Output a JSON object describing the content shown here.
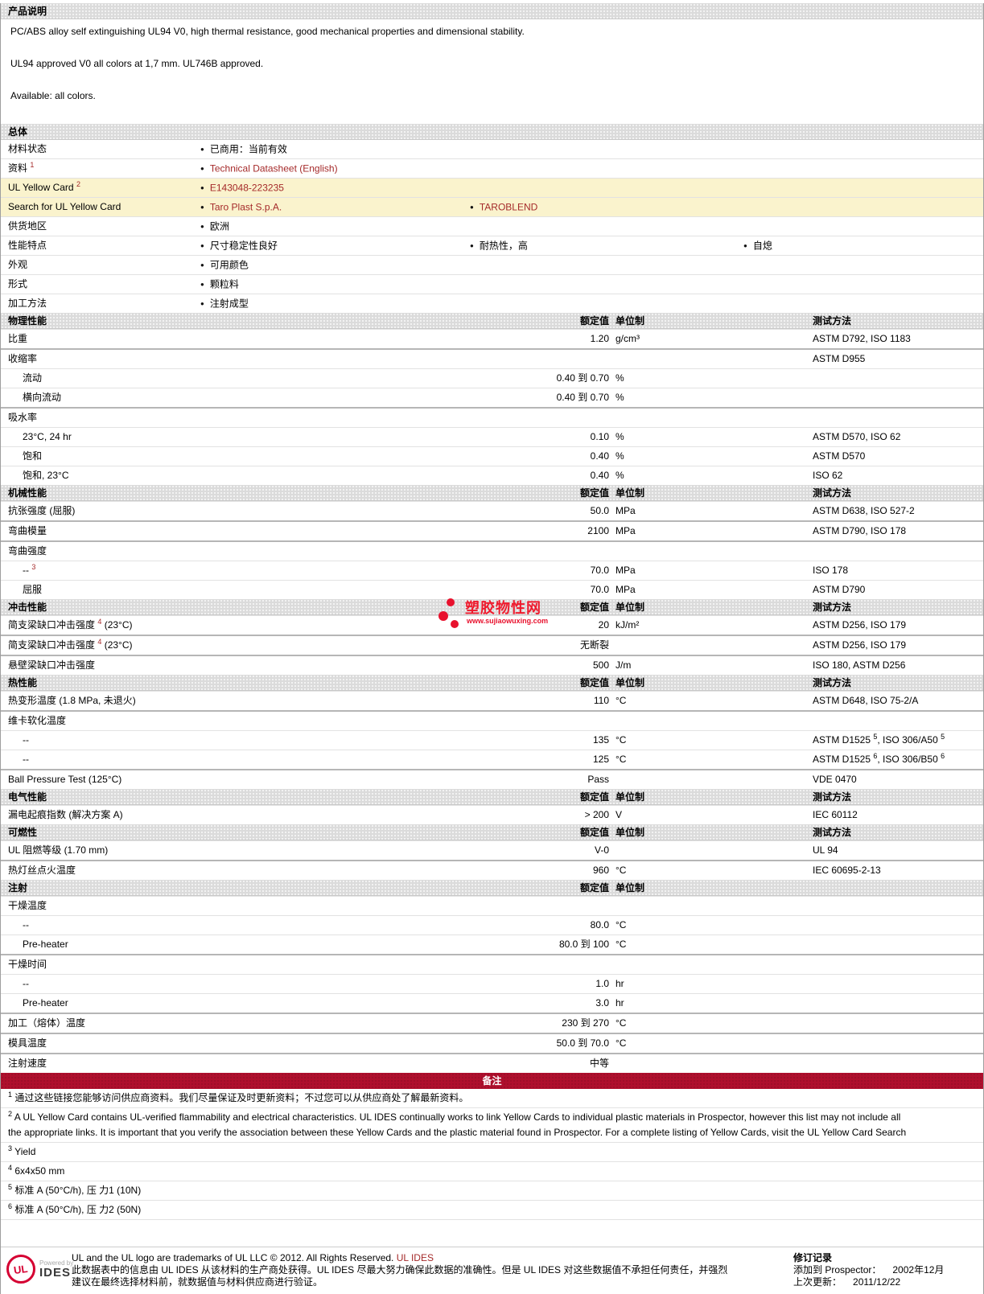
{
  "description": {
    "title": "产品说明",
    "paragraphs": [
      "PC/ABS alloy self extinguishing UL94 V0, high thermal resistance, good mechanical properties and dimensional stability.",
      "UL94 approved V0 all colors at 1,7 mm. UL746B approved.",
      "Available: all colors."
    ]
  },
  "general": {
    "title": "总体",
    "rows": [
      {
        "label": [
          "材料状态"
        ],
        "items": [
          {
            "col": 0,
            "text": "已商用：当前有效",
            "link": false
          }
        ]
      },
      {
        "label": [
          "资料 ",
          {
            "s": "1",
            "red": true
          }
        ],
        "items": [
          {
            "col": 0,
            "text": "Technical Datasheet (English)",
            "link": true
          }
        ]
      },
      {
        "label": [
          "UL Yellow Card ",
          {
            "s": "2",
            "red": true
          }
        ],
        "yellow": true,
        "items": [
          {
            "col": 0,
            "text": "E143048-223235",
            "link": true
          }
        ]
      },
      {
        "label": [
          "Search for UL Yellow Card"
        ],
        "yellow": true,
        "items": [
          {
            "col": 0,
            "text": "Taro Plast S.p.A.",
            "link": true
          },
          {
            "col": 1,
            "text": "TAROBLEND",
            "link": true
          }
        ]
      },
      {
        "label": [
          "供货地区"
        ],
        "items": [
          {
            "col": 0,
            "text": "欧洲",
            "link": false
          }
        ]
      },
      {
        "label": [
          "性能特点"
        ],
        "items": [
          {
            "col": 0,
            "text": "尺寸稳定性良好",
            "link": false
          },
          {
            "col": 1,
            "text": "耐热性，高",
            "link": false
          },
          {
            "col": 2,
            "text": "自熄",
            "link": false
          }
        ]
      },
      {
        "label": [
          "外观"
        ],
        "items": [
          {
            "col": 0,
            "text": "可用颜色",
            "link": false
          }
        ]
      },
      {
        "label": [
          "形式"
        ],
        "items": [
          {
            "col": 0,
            "text": "颗粒料",
            "link": false
          }
        ]
      },
      {
        "label": [
          "加工方法"
        ],
        "items": [
          {
            "col": 0,
            "text": "注射成型",
            "link": false
          }
        ]
      }
    ]
  },
  "columns": {
    "value": "额定值",
    "unit": "单位制",
    "method": "测试方法"
  },
  "sections": [
    {
      "title": "物理性能",
      "has_method": true,
      "rows": [
        {
          "label": [
            "比重"
          ],
          "value": "1.20",
          "unit": "g/cm³",
          "method": [
            "ASTM D792, ISO 1183"
          ]
        },
        {
          "label": [
            "收缩率"
          ],
          "method": [
            "ASTM D955"
          ]
        },
        {
          "indent": true,
          "label": [
            "流动"
          ],
          "value": "0.40 到 0.70",
          "unit": "%"
        },
        {
          "indent": true,
          "label": [
            "横向流动"
          ],
          "value": "0.40 到 0.70",
          "unit": "%"
        },
        {
          "label": [
            "吸水率"
          ]
        },
        {
          "indent": true,
          "label": [
            "23°C, 24 hr"
          ],
          "value": "0.10",
          "unit": "%",
          "method": [
            "ASTM D570, ISO 62"
          ]
        },
        {
          "indent": true,
          "label": [
            "饱和"
          ],
          "value": "0.40",
          "unit": "%",
          "method": [
            "ASTM D570"
          ]
        },
        {
          "indent": true,
          "label": [
            "饱和, 23°C"
          ],
          "value": "0.40",
          "unit": "%",
          "method": [
            "ISO 62"
          ]
        }
      ]
    },
    {
      "title": "机械性能",
      "has_method": true,
      "rows": [
        {
          "label": [
            "抗张强度 (屈服)"
          ],
          "value": "50.0",
          "unit": "MPa",
          "method": [
            "ASTM D638, ISO 527-2"
          ]
        },
        {
          "label": [
            "弯曲模量"
          ],
          "value": "2100",
          "unit": "MPa",
          "method": [
            "ASTM D790, ISO 178"
          ]
        },
        {
          "label": [
            "弯曲强度"
          ]
        },
        {
          "indent": true,
          "label": [
            "-- ",
            {
              "s": "3",
              "red": true
            }
          ],
          "value": "70.0",
          "unit": "MPa",
          "method": [
            "ISO 178"
          ]
        },
        {
          "indent": true,
          "label": [
            "屈服"
          ],
          "value": "70.0",
          "unit": "MPa",
          "method": [
            "ASTM D790"
          ]
        }
      ]
    },
    {
      "title": "冲击性能",
      "has_method": true,
      "rows": [
        {
          "label": [
            "简支梁缺口冲击强度 ",
            {
              "s": "4",
              "red": true
            },
            " (23°C)"
          ],
          "value": "20",
          "unit": "kJ/m²",
          "method": [
            "ASTM D256, ISO 179"
          ]
        },
        {
          "label": [
            "简支梁缺口冲击强度 ",
            {
              "s": "4",
              "red": true
            },
            " (23°C)"
          ],
          "value": "无断裂",
          "method": [
            "ASTM D256, ISO 179"
          ]
        },
        {
          "label": [
            "悬壁梁缺口冲击强度"
          ],
          "value": "500",
          "unit": "J/m",
          "method": [
            "ISO 180, ASTM D256"
          ]
        }
      ]
    },
    {
      "title": "热性能",
      "has_method": true,
      "rows": [
        {
          "label": [
            "热变形温度 (1.8 MPa, 未退火)"
          ],
          "value": "110",
          "unit": "°C",
          "method": [
            "ASTM D648, ISO 75-2/A"
          ]
        },
        {
          "label": [
            "维卡软化温度"
          ]
        },
        {
          "indent": true,
          "label": [
            "--"
          ],
          "value": "135",
          "unit": "°C",
          "method": [
            "ASTM D1525 ",
            {
              "s": "5"
            },
            ", ISO 306/A50 ",
            {
              "s": "5"
            }
          ]
        },
        {
          "indent": true,
          "label": [
            "--"
          ],
          "value": "125",
          "unit": "°C",
          "method": [
            "ASTM D1525 ",
            {
              "s": "6"
            },
            ", ISO 306/B50 ",
            {
              "s": "6"
            }
          ]
        },
        {
          "label": [
            "Ball Pressure Test (125°C)"
          ],
          "value": "Pass",
          "method": [
            "VDE 0470"
          ]
        }
      ]
    },
    {
      "title": "电气性能",
      "has_method": true,
      "rows": [
        {
          "label": [
            "漏电起痕指数 (解决方案 A)"
          ],
          "value": "> 200",
          "unit": "V",
          "method": [
            "IEC 60112"
          ]
        }
      ]
    },
    {
      "title": "可燃性",
      "has_method": true,
      "rows": [
        {
          "label": [
            "UL 阻燃等级 (1.70 mm)"
          ],
          "value": "V-0",
          "method": [
            "UL 94"
          ]
        },
        {
          "label": [
            "热灯丝点火温度"
          ],
          "value": "960",
          "unit": "°C",
          "method": [
            "IEC 60695-2-13"
          ]
        }
      ]
    },
    {
      "title": "注射",
      "has_method": false,
      "rows": [
        {
          "label": [
            "干燥温度"
          ]
        },
        {
          "indent": true,
          "label": [
            "--"
          ],
          "value": "80.0",
          "unit": "°C"
        },
        {
          "indent": true,
          "label": [
            "Pre-heater"
          ],
          "value": "80.0 到 100",
          "unit": "°C"
        },
        {
          "label": [
            "干燥时间"
          ]
        },
        {
          "indent": true,
          "label": [
            "--"
          ],
          "value": "1.0",
          "unit": "hr"
        },
        {
          "indent": true,
          "label": [
            "Pre-heater"
          ],
          "value": "3.0",
          "unit": "hr"
        },
        {
          "label": [
            "加工（熔体）温度"
          ],
          "value": "230 到 270",
          "unit": "°C"
        },
        {
          "label": [
            "模具温度"
          ],
          "value": "50.0 到 70.0",
          "unit": "°C"
        },
        {
          "label": [
            "注射速度"
          ],
          "value": "中等"
        }
      ]
    }
  ],
  "notes": {
    "title": "备注",
    "items": [
      {
        "sup": "1",
        "lines": [
          "通过这些链接您能够访问供应商资料。我们尽量保证及时更新资料；不过您可以从供应商处了解最新资料。"
        ]
      },
      {
        "sup": "2",
        "lines": [
          "A UL Yellow Card contains UL-verified flammability and electrical characteristics. UL IDES continually works to link Yellow Cards to individual plastic materials in Prospector, however this list may not include all",
          "the appropriate links. It is important that you verify the association between these Yellow Cards and the plastic material found in Prospector. For a complete listing of Yellow Cards, visit the UL Yellow Card Search"
        ]
      },
      {
        "sup": "3",
        "lines": [
          "Yield"
        ]
      },
      {
        "sup": "4",
        "lines": [
          "6x4x50 mm"
        ]
      },
      {
        "sup": "5",
        "lines": [
          "标准 A (50°C/h), 压 力1 (10N)"
        ]
      },
      {
        "sup": "6",
        "lines": [
          "标准 A (50°C/h), 压 力2 (50N)"
        ]
      }
    ]
  },
  "watermark": {
    "name": "塑胶物性网",
    "url": "www.sujiaowuxing.com"
  },
  "footer": {
    "logo_ul": "UL",
    "powered_by": "Powered by",
    "logo_ides": "IDES",
    "trademark_text": "UL and the UL logo are trademarks of UL LLC © 2012. All Rights Reserved. ",
    "trademark_link": "UL IDES",
    "cn_line1": "此数据表中的信息由 UL IDES 从该材料的生产商处获得。UL IDES 尽最大努力确保此数据的准确性。但是 UL IDES 对这些数据值不承担任何责任，并强烈",
    "cn_line2": "建议在最终选择材料前，就数据值与材料供应商进行验证。",
    "revision": {
      "title": "修订记录",
      "added_label": "添加到 Prospector：",
      "added_value": "2002年12月",
      "updated_label": "上次更新：",
      "updated_value": "2011/12/22"
    }
  },
  "colors": {
    "bar_gray": "#dbdbdb",
    "notes_bar_red": "#af0f2d",
    "yellow_row": "#faf3cd",
    "link": "#a52a2a",
    "watermark_red": "#e8112d",
    "ul_logo_red": "#d50032"
  }
}
